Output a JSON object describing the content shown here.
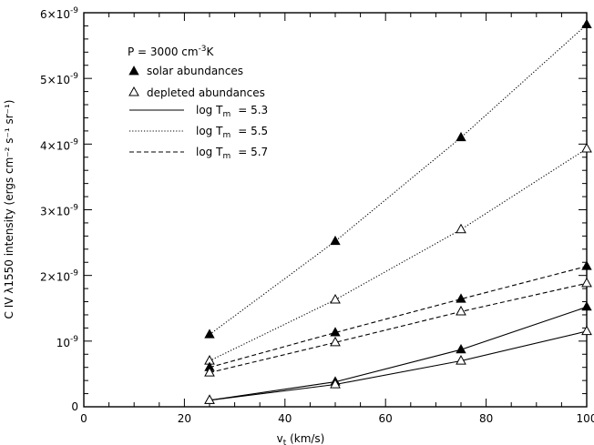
{
  "chart_data": {
    "type": "line",
    "xlabel_main": "v",
    "xlabel_sub": "t",
    "xlabel_rest": " (km/s)",
    "ylabel": "C IV λ1550 intensity (ergs cm⁻² s⁻¹ sr⁻¹)",
    "xlim": [
      0,
      100
    ],
    "ylim": [
      0,
      6e-09
    ],
    "x_ticks": [
      0,
      20,
      40,
      60,
      80,
      100
    ],
    "y_ticks": [
      {
        "value": 0,
        "mant": "0",
        "exp": ""
      },
      {
        "value": 1e-09,
        "mant": "10",
        "exp": "-9"
      },
      {
        "value": 2e-09,
        "mant": "2×10",
        "exp": "-9"
      },
      {
        "value": 3e-09,
        "mant": "3×10",
        "exp": "-9"
      },
      {
        "value": 4e-09,
        "mant": "4×10",
        "exp": "-9"
      },
      {
        "value": 5e-09,
        "mant": "5×10",
        "exp": "-9"
      },
      {
        "value": 6e-09,
        "mant": "6×10",
        "exp": "-9"
      }
    ],
    "x": [
      25,
      50,
      75,
      100
    ],
    "series": [
      {
        "logTm": "5.3",
        "style": "solid",
        "abundance": "solar",
        "values": [
          1e-10,
          3.8e-10,
          8.7e-10,
          1.52e-09
        ]
      },
      {
        "logTm": "5.3",
        "style": "solid",
        "abundance": "depleted",
        "values": [
          1e-10,
          3.4e-10,
          7e-10,
          1.15e-09
        ]
      },
      {
        "logTm": "5.5",
        "style": "dotted",
        "abundance": "solar",
        "values": [
          1.1e-09,
          2.52e-09,
          4.1e-09,
          5.82e-09
        ]
      },
      {
        "logTm": "5.5",
        "style": "dotted",
        "abundance": "depleted",
        "values": [
          7e-10,
          1.63e-09,
          2.7e-09,
          3.93e-09
        ]
      },
      {
        "logTm": "5.7",
        "style": "dashed",
        "abundance": "solar",
        "values": [
          6e-10,
          1.13e-09,
          1.64e-09,
          2.14e-09
        ]
      },
      {
        "logTm": "5.7",
        "style": "dashed",
        "abundance": "depleted",
        "values": [
          5.2e-10,
          9.8e-10,
          1.45e-09,
          1.88e-09
        ]
      }
    ],
    "legend": {
      "pressure_text": "P = 3000 cm",
      "pressure_exp": "-3",
      "pressure_unit": "K",
      "solar_label": "solar abundances",
      "depleted_label": "depleted abundances",
      "line_prefix": "log T",
      "line_sub": "m",
      "entries": [
        {
          "style": "solid",
          "value": "= 5.3"
        },
        {
          "style": "dotted",
          "value": "= 5.5"
        },
        {
          "style": "dashed",
          "value": "= 5.7"
        }
      ]
    }
  }
}
